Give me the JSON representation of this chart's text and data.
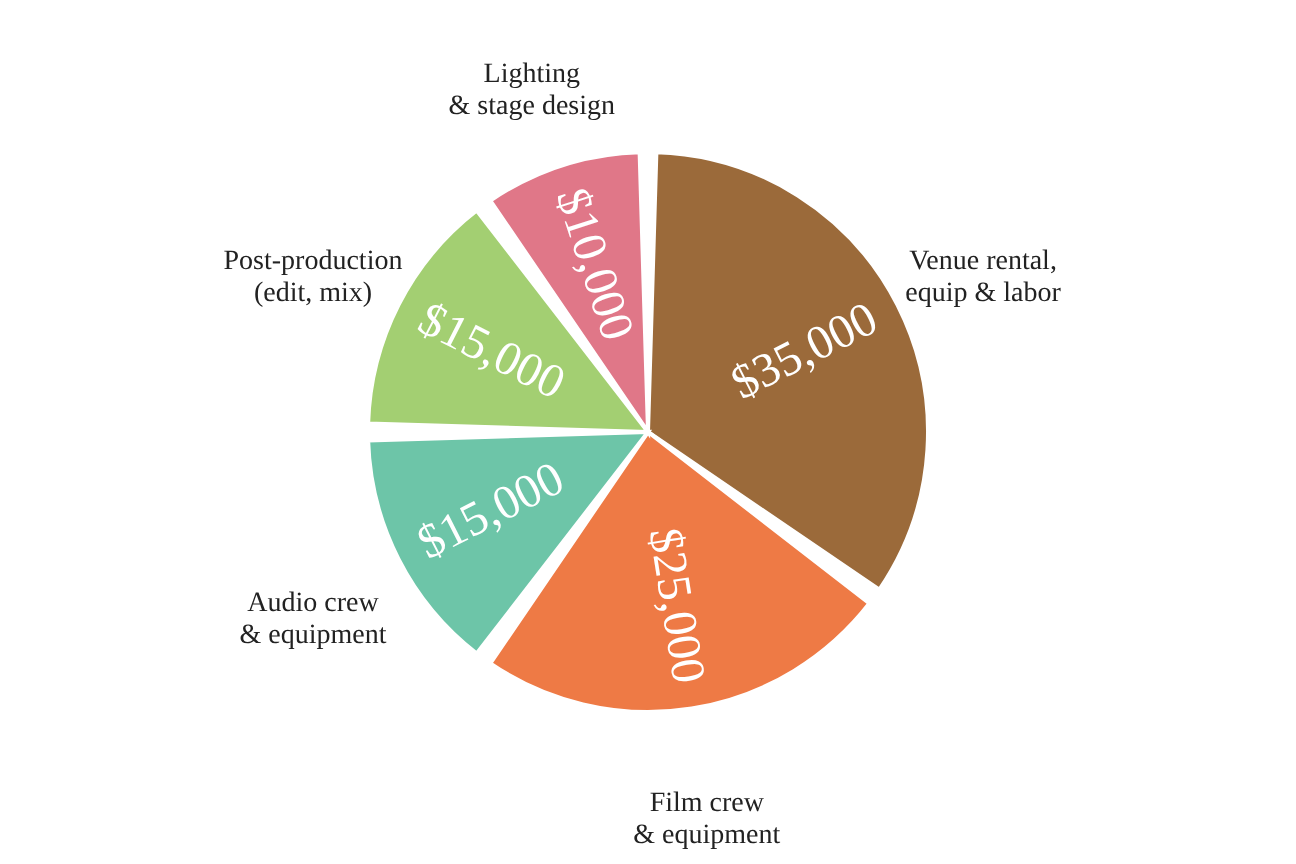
{
  "chart_data": {
    "type": "pie",
    "categories": [
      "Venue rental,\nequip & labor",
      "Film crew\n& equipment",
      "Audio crew\n& equipment",
      "Post-production\n(edit, mix)",
      "Lighting\n& stage design"
    ],
    "values": [
      35000,
      25000,
      15000,
      15000,
      10000
    ],
    "value_labels": [
      "$35,000",
      "$25,000",
      "$15,000",
      "$15,000",
      "$10,000"
    ],
    "colors": [
      "#9b6a3a",
      "#ee7a45",
      "#6dc5a8",
      "#a3cf72",
      "#e07788"
    ],
    "legend": false
  }
}
